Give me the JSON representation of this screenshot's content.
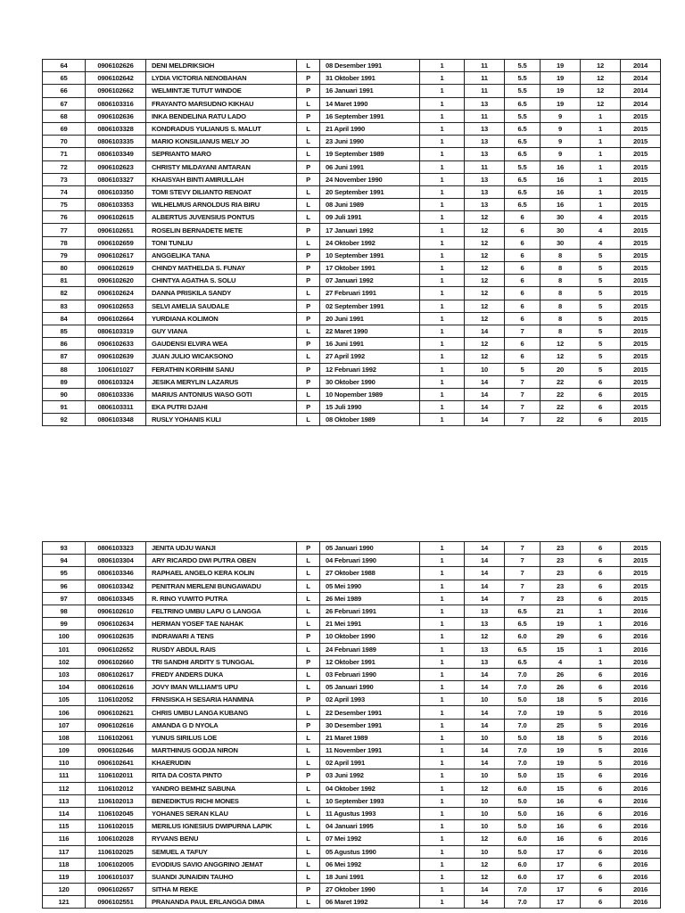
{
  "tables": [
    {
      "rows": [
        [
          "64",
          "0906102626",
          "DENI MELDRIKSIOH",
          "L",
          "08 Desember 1991",
          "1",
          "11",
          "5.5",
          "19",
          "12",
          "2014"
        ],
        [
          "65",
          "0906102642",
          "LYDIA VICTORIA NENOBAHAN",
          "P",
          "31 Oktober 1991",
          "1",
          "11",
          "5.5",
          "19",
          "12",
          "2014"
        ],
        [
          "66",
          "0906102662",
          "WELMINTJE TUTUT WINDOE",
          "P",
          "16 Januari 1991",
          "1",
          "11",
          "5.5",
          "19",
          "12",
          "2014"
        ],
        [
          "67",
          "0806103316",
          "FRAYANTO MARSUDNO KIKHAU",
          "L",
          "14 Maret 1990",
          "1",
          "13",
          "6.5",
          "19",
          "12",
          "2014"
        ],
        [
          "68",
          "0906102636",
          "INKA BENDELINA RATU LADO",
          "P",
          "16 September 1991",
          "1",
          "11",
          "5.5",
          "9",
          "1",
          "2015"
        ],
        [
          "69",
          "0806103328",
          "KONDRADUS YULIANUS S. MALUT",
          "L",
          "21 April 1990",
          "1",
          "13",
          "6.5",
          "9",
          "1",
          "2015"
        ],
        [
          "70",
          "0806103335",
          "MARIO KONSILIANUS MELY JO",
          "L",
          "23 Juni 1990",
          "1",
          "13",
          "6.5",
          "9",
          "1",
          "2015"
        ],
        [
          "71",
          "0806103349",
          "SEPRIANTO MARO",
          "L",
          "19 September 1989",
          "1",
          "13",
          "6.5",
          "9",
          "1",
          "2015"
        ],
        [
          "72",
          "0906102623",
          "CHRISTY MILDAYANI AMTARAN",
          "P",
          "06 Juni 1991",
          "1",
          "11",
          "5.5",
          "16",
          "1",
          "2015"
        ],
        [
          "73",
          "0806103327",
          "KHAISYAH BINTI AMIRULLAH",
          "P",
          "24 November 1990",
          "1",
          "13",
          "6.5",
          "16",
          "1",
          "2015"
        ],
        [
          "74",
          "0806103350",
          "TOMI STEVY DILIANTO RENOAT",
          "L",
          "20 September 1991",
          "1",
          "13",
          "6.5",
          "16",
          "1",
          "2015"
        ],
        [
          "75",
          "0806103353",
          "WILHELMUS ARNOLDUS RIA BIRU",
          "L",
          "08 Juni 1989",
          "1",
          "13",
          "6.5",
          "16",
          "1",
          "2015"
        ],
        [
          "76",
          "0906102615",
          "ALBERTUS JUVENSIUS PONTUS",
          "L",
          "09 Juli 1991",
          "1",
          "12",
          "6",
          "30",
          "4",
          "2015"
        ],
        [
          "77",
          "0906102651",
          "ROSELIN BERNADETE METE",
          "P",
          "17 Januari 1992",
          "1",
          "12",
          "6",
          "30",
          "4",
          "2015"
        ],
        [
          "78",
          "0906102659",
          "TONI TUNLIU",
          "L",
          "24 Oktober 1992",
          "1",
          "12",
          "6",
          "30",
          "4",
          "2015"
        ],
        [
          "79",
          "0906102617",
          "ANGGELIKA TANA",
          "P",
          "10 September 1991",
          "1",
          "12",
          "6",
          "8",
          "5",
          "2015"
        ],
        [
          "80",
          "0906102619",
          "CHINDY MATHELDA S. FUNAY",
          "P",
          "17 Oktober 1991",
          "1",
          "12",
          "6",
          "8",
          "5",
          "2015"
        ],
        [
          "81",
          "0906102620",
          "CHINTYA AGATHA S. SOLU",
          "P",
          "07 Januari 1992",
          "1",
          "12",
          "6",
          "8",
          "5",
          "2015"
        ],
        [
          "82",
          "0906102624",
          "DANNA PRISKILA SANDY",
          "L",
          "27 Februari 1991",
          "1",
          "12",
          "6",
          "8",
          "5",
          "2015"
        ],
        [
          "83",
          "0906102653",
          "SELVI AMELIA SAUDALE",
          "P",
          "02 September 1991",
          "1",
          "12",
          "6",
          "8",
          "5",
          "2015"
        ],
        [
          "84",
          "0906102664",
          "YURDIANA KOLIMON",
          "P",
          "20 Juni 1991",
          "1",
          "12",
          "6",
          "8",
          "5",
          "2015"
        ],
        [
          "85",
          "0806103319",
          "GUY VIANA",
          "L",
          "22 Maret 1990",
          "1",
          "14",
          "7",
          "8",
          "5",
          "2015"
        ],
        [
          "86",
          "0906102633",
          "GAUDENSI ELVIRA WEA",
          "P",
          "16 Juni 1991",
          "1",
          "12",
          "6",
          "12",
          "5",
          "2015"
        ],
        [
          "87",
          "0906102639",
          "JUAN JULIO WICAKSONO",
          "L",
          "27 April 1992",
          "1",
          "12",
          "6",
          "12",
          "5",
          "2015"
        ],
        [
          "88",
          "1006101027",
          "FERATHIN KORIHIM SANU",
          "P",
          "12 Februari 1992",
          "1",
          "10",
          "5",
          "20",
          "5",
          "2015"
        ],
        [
          "89",
          "0806103324",
          "JESIKA MERYLIN LAZARUS",
          "P",
          "30 Oktober 1990",
          "1",
          "14",
          "7",
          "22",
          "6",
          "2015"
        ],
        [
          "90",
          "0806103336",
          "MARIUS ANTONIUS WASO GOTI",
          "L",
          "10 Nopember 1989",
          "1",
          "14",
          "7",
          "22",
          "6",
          "2015"
        ],
        [
          "91",
          "0806103311",
          "EKA PUTRI DJAHI",
          "P",
          "15 Juli 1990",
          "1",
          "14",
          "7",
          "22",
          "6",
          "2015"
        ],
        [
          "92",
          "0806103348",
          "RUSLY YOHANIS KULI",
          "L",
          "08 Oktober 1989",
          "1",
          "14",
          "7",
          "22",
          "6",
          "2015"
        ]
      ]
    },
    {
      "rows": [
        [
          "93",
          "0806103323",
          "JENITA UDJU WANJI",
          "P",
          "05 Januari 1990",
          "1",
          "14",
          "7",
          "23",
          "6",
          "2015"
        ],
        [
          "94",
          "0806103304",
          "ARY RICARDO DWI PUTRA OBEN",
          "L",
          "04 Februari 1990",
          "1",
          "14",
          "7",
          "23",
          "6",
          "2015"
        ],
        [
          "95",
          "0806103346",
          "RAPHAEL ANGELO KERA KOLIN",
          "L",
          "27 Oktober 1988",
          "1",
          "14",
          "7",
          "23",
          "6",
          "2015"
        ],
        [
          "96",
          "0806103342",
          "PENITRAN MERLENI BUNGAWADU",
          "L",
          "05 Mei 1990",
          "1",
          "14",
          "7",
          "23",
          "6",
          "2015"
        ],
        [
          "97",
          "0806103345",
          "R. RINO YUWITO PUTRA",
          "L",
          "26 Mei 1989",
          "1",
          "14",
          "7",
          "23",
          "6",
          "2015"
        ],
        [
          "98",
          "0906102610",
          "FELTRINO UMBU LAPU G LANGGA",
          "L",
          "26 Februari 1991",
          "1",
          "13",
          "6.5",
          "21",
          "1",
          "2016"
        ],
        [
          "99",
          "0906102634",
          "HERMAN YOSEF TAE NAHAK",
          "L",
          "21 Mei 1991",
          "1",
          "13",
          "6.5",
          "19",
          "1",
          "2016"
        ],
        [
          "100",
          "0906102635",
          "INDRAWARI A TENS",
          "P",
          "10 Oktober 1990",
          "1",
          "12",
          "6.0",
          "29",
          "6",
          "2016"
        ],
        [
          "101",
          "0906102652",
          "RUSDY ABDUL RAIS",
          "L",
          "24 Februari 1989",
          "1",
          "13",
          "6.5",
          "15",
          "1",
          "2016"
        ],
        [
          "102",
          "0906102660",
          "TRI SANDHI ARDITY S TUNGGAL",
          "P",
          "12 Oktober 1991",
          "1",
          "13",
          "6.5",
          "4",
          "1",
          "2016"
        ],
        [
          "103",
          "0806102617",
          " FREDY ANDERS DUKA",
          "L",
          "03 Februari 1990",
          "1",
          "14",
          "7.0",
          "26",
          "6",
          "2016"
        ],
        [
          "104",
          "0806102616",
          "JOVY IMAN WILLIAM'S UPU",
          "L",
          "05 Januari 1990",
          "1",
          "14",
          "7.0",
          "26",
          "6",
          "2016"
        ],
        [
          "105",
          "1106102052",
          "FRNSISKA H SESARIA HANMINA",
          "P",
          "02 April 1993",
          "1",
          "10",
          "5.0",
          "18",
          "5",
          "2016"
        ],
        [
          "106",
          "0906102621",
          "CHRIS UMBU LANGA KUBANG",
          "L",
          "22 Desember 1991",
          "1",
          "14",
          "7.0",
          "19",
          "5",
          "2016"
        ],
        [
          "107",
          "0906102616",
          "AMANDA G D NYOLA",
          "P",
          "30 Desember 1991",
          "1",
          "14",
          "7.0",
          "25",
          "5",
          "2016"
        ],
        [
          "108",
          "1106102061",
          "YUNUS SIRILUS LOE",
          "L",
          "21 Maret 1989",
          "1",
          "10",
          "5.0",
          "18",
          "5",
          "2016"
        ],
        [
          "109",
          "0906102646",
          "MARTHINUS GODJA NIRON",
          "L",
          "11 November 1991",
          "1",
          "14",
          "7.0",
          "19",
          "5",
          "2016"
        ],
        [
          "110",
          "0906102641",
          "KHAERUDIN",
          "L",
          "02 April 1991",
          "1",
          "14",
          "7.0",
          "19",
          "5",
          "2016"
        ],
        [
          "111",
          "1106102011",
          "RITA DA COSTA PINTO",
          "P",
          "03 Juni 1992",
          "1",
          "10",
          "5.0",
          "15",
          "6",
          "2016"
        ],
        [
          "112",
          "1106102012",
          "YANDRO BEMHIZ SABUNA",
          "L",
          "04 Oktober 1992",
          "1",
          "12",
          "6.0",
          "15",
          "6",
          "2016"
        ],
        [
          "113",
          "1106102013",
          "BENEDIKTUS RICHI MONES",
          "L",
          "10 September 1993",
          "1",
          "10",
          "5.0",
          "16",
          "6",
          "2016"
        ],
        [
          "114",
          "1106102045",
          "YOHANES SERAN KLAU",
          "L",
          "11 Agustus 1993",
          "1",
          "10",
          "5.0",
          "16",
          "6",
          "2016"
        ],
        [
          "115",
          "1106102015",
          "MERILUS IGNESIUS DWIPURNA LAPIK",
          "L",
          "04 Januari 1995",
          "1",
          "10",
          "5.0",
          "16",
          "6",
          "2016"
        ],
        [
          "116",
          "1006102028",
          "RYVANS BENU",
          "L",
          "07 Mei 1992",
          "1",
          "12",
          "6.0",
          "16",
          "6",
          "2016"
        ],
        [
          "117",
          "1106102025",
          "SEMUEL A TAFUY",
          "L",
          "05 Agustus 1990",
          "1",
          "10",
          "5.0",
          "17",
          "6",
          "2016"
        ],
        [
          "118",
          "1006102005",
          "EVODIUS SAVIO ANGGRINO JEMAT",
          "L",
          "06 Mei 1992",
          "1",
          "12",
          "6.0",
          "17",
          "6",
          "2016"
        ],
        [
          "119",
          "1006101037",
          "SUANDI JUNAIDIN TAUHO",
          "L",
          "18 Juni 1991",
          "1",
          "12",
          "6.0",
          "17",
          "6",
          "2016"
        ],
        [
          "120",
          "0906102657",
          "SITHA M REKE",
          "P",
          "27 Oktober 1990",
          "1",
          "14",
          "7.0",
          "17",
          "6",
          "2016"
        ],
        [
          "121",
          "0906102551",
          "PRANANDA PAUL ERLANGGA DIMA",
          "L",
          "06 Maret 1992",
          "1",
          "14",
          "7.0",
          "17",
          "6",
          "2016"
        ]
      ]
    }
  ]
}
